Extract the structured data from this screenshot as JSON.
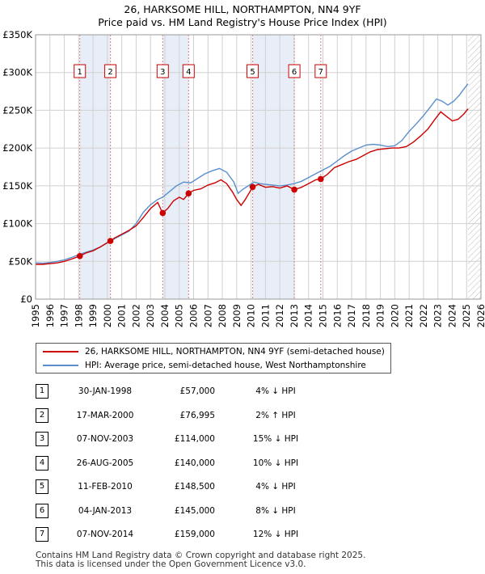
{
  "title_line1": "26, HARKSOME HILL, NORTHAMPTON, NN4 9YF",
  "title_line2": "Price paid vs. HM Land Registry's House Price Index (HPI)",
  "colors": {
    "property": "#cc0000",
    "hpi": "#5a8fcc",
    "shade": "#e8eef8",
    "grid": "#d0d0d0"
  },
  "legend": {
    "property_label": "26, HARKSOME HILL, NORTHAMPTON, NN4 9YF (semi-detached house)",
    "hpi_label": "HPI: Average price, semi-detached house, West Northamptonshire"
  },
  "chart_data": {
    "type": "line",
    "title": "Price paid vs. HM Land Registry's House Price Index (HPI)",
    "xlabel": "",
    "ylabel": "",
    "xlim": [
      1995,
      2026
    ],
    "ylim": [
      0,
      350000
    ],
    "y_ticks": [
      {
        "value": 0,
        "label": "£0"
      },
      {
        "value": 50000,
        "label": "£50K"
      },
      {
        "value": 100000,
        "label": "£100K"
      },
      {
        "value": 150000,
        "label": "£150K"
      },
      {
        "value": 200000,
        "label": "£200K"
      },
      {
        "value": 250000,
        "label": "£250K"
      },
      {
        "value": 300000,
        "label": "£300K"
      },
      {
        "value": 350000,
        "label": "£350K"
      }
    ],
    "x_ticks": [
      "1995",
      "1996",
      "1997",
      "1998",
      "1999",
      "2000",
      "2001",
      "2002",
      "2003",
      "2004",
      "2005",
      "2006",
      "2007",
      "2008",
      "2009",
      "2010",
      "2011",
      "2012",
      "2013",
      "2014",
      "2015",
      "2016",
      "2017",
      "2018",
      "2019",
      "2020",
      "2021",
      "2022",
      "2023",
      "2024",
      "2025",
      "2026"
    ],
    "forecast_start": 2025.1,
    "series": [
      {
        "name": "HPI: Average price, semi-detached house, West Northamptonshire",
        "color": "#5a8fcc",
        "x": [
          1995.0,
          1995.5,
          1996.0,
          1996.5,
          1997.0,
          1997.5,
          1998.0,
          1998.5,
          1999.0,
          1999.5,
          2000.0,
          2000.5,
          2001.0,
          2001.5,
          2002.0,
          2002.5,
          2003.0,
          2003.5,
          2003.85,
          2004.3,
          2004.8,
          2005.3,
          2005.8,
          2006.3,
          2006.8,
          2007.3,
          2007.8,
          2008.3,
          2008.8,
          2009.1,
          2009.4,
          2009.8,
          2010.2,
          2010.6,
          2011.0,
          2011.5,
          2012.0,
          2012.5,
          2013.0,
          2013.5,
          2014.0,
          2014.5,
          2015.0,
          2015.5,
          2016.0,
          2016.5,
          2017.0,
          2017.5,
          2018.0,
          2018.5,
          2019.0,
          2019.5,
          2020.0,
          2020.5,
          2021.0,
          2021.5,
          2022.0,
          2022.5,
          2022.9,
          2023.3,
          2023.7,
          2024.1,
          2024.5,
          2024.8,
          2025.1
        ],
        "y": [
          48000,
          47500,
          48500,
          50000,
          52000,
          55000,
          59000,
          62000,
          65000,
          69000,
          75000,
          80000,
          85000,
          90000,
          100000,
          115000,
          125000,
          132000,
          135000,
          142000,
          150000,
          155000,
          154000,
          160000,
          166000,
          170000,
          173000,
          168000,
          155000,
          140000,
          145000,
          150000,
          155000,
          153000,
          152000,
          151000,
          150000,
          151000,
          153000,
          156000,
          161000,
          166000,
          171000,
          176000,
          183000,
          190000,
          196000,
          200000,
          204000,
          205000,
          204000,
          202000,
          203000,
          210000,
          222000,
          232000,
          243000,
          255000,
          265000,
          262000,
          257000,
          262000,
          270000,
          278000,
          285000
        ]
      },
      {
        "name": "26, HARKSOME HILL, NORTHAMPTON, NN4 9YF (semi-detached house)",
        "color": "#cc0000",
        "x": [
          1995.0,
          1995.5,
          1996.0,
          1996.5,
          1997.0,
          1997.5,
          1998.08,
          1998.5,
          1999.0,
          1999.5,
          2000.21,
          2000.5,
          2001.0,
          2001.5,
          2002.0,
          2002.5,
          2003.0,
          2003.5,
          2003.84,
          2004.2,
          2004.6,
          2005.0,
          2005.3,
          2005.65,
          2006.0,
          2006.5,
          2007.0,
          2007.5,
          2007.9,
          2008.3,
          2008.7,
          2009.0,
          2009.3,
          2009.6,
          2010.11,
          2010.5,
          2011.0,
          2011.5,
          2012.0,
          2012.5,
          2013.01,
          2013.5,
          2014.0,
          2014.5,
          2014.85,
          2015.3,
          2015.8,
          2016.3,
          2016.8,
          2017.3,
          2017.8,
          2018.3,
          2018.8,
          2019.3,
          2019.8,
          2020.3,
          2020.8,
          2021.3,
          2021.8,
          2022.3,
          2022.8,
          2023.2,
          2023.6,
          2024.0,
          2024.4,
          2024.8,
          2025.1
        ],
        "y": [
          46000,
          46000,
          47000,
          48000,
          50000,
          53000,
          57000,
          61000,
          64000,
          69000,
          76995,
          81000,
          86000,
          91000,
          97000,
          108000,
          120000,
          128000,
          114000,
          120000,
          130000,
          135000,
          132000,
          140000,
          144000,
          146000,
          151000,
          154000,
          158000,
          153000,
          142000,
          132000,
          124000,
          132000,
          148500,
          152000,
          148000,
          149000,
          147000,
          150000,
          145000,
          148000,
          153000,
          158000,
          159000,
          165000,
          174000,
          178000,
          182000,
          185000,
          190000,
          195000,
          198000,
          199000,
          200000,
          200000,
          202000,
          208000,
          216000,
          225000,
          238000,
          248000,
          242000,
          236000,
          238000,
          245000,
          252000
        ]
      }
    ],
    "sales": [
      {
        "id": "1",
        "x": 1998.08,
        "y": 57000,
        "date": "30-JAN-1998",
        "price": "£57,000",
        "hpi": "4% ↓ HPI"
      },
      {
        "id": "2",
        "x": 2000.21,
        "y": 76995,
        "date": "17-MAR-2000",
        "price": "£76,995",
        "hpi": "2% ↑ HPI"
      },
      {
        "id": "3",
        "x": 2003.85,
        "y": 114000,
        "date": "07-NOV-2003",
        "price": "£114,000",
        "hpi": "15% ↓ HPI"
      },
      {
        "id": "4",
        "x": 2005.65,
        "y": 140000,
        "date": "26-AUG-2005",
        "price": "£140,000",
        "hpi": "10% ↓ HPI"
      },
      {
        "id": "5",
        "x": 2010.11,
        "y": 148500,
        "date": "11-FEB-2010",
        "price": "£148,500",
        "hpi": "4% ↓ HPI"
      },
      {
        "id": "6",
        "x": 2013.01,
        "y": 145000,
        "date": "04-JAN-2013",
        "price": "£145,000",
        "hpi": "8% ↓ HPI"
      },
      {
        "id": "7",
        "x": 2014.85,
        "y": 159000,
        "date": "07-NOV-2014",
        "price": "£159,000",
        "hpi": "12% ↓ HPI"
      }
    ],
    "shaded_ranges": [
      [
        1998.08,
        2000.21
      ],
      [
        2003.85,
        2005.65
      ],
      [
        2010.11,
        2013.01
      ]
    ]
  },
  "footer_line1": "Contains HM Land Registry data © Crown copyright and database right 2025.",
  "footer_line2": "This data is licensed under the Open Government Licence v3.0."
}
